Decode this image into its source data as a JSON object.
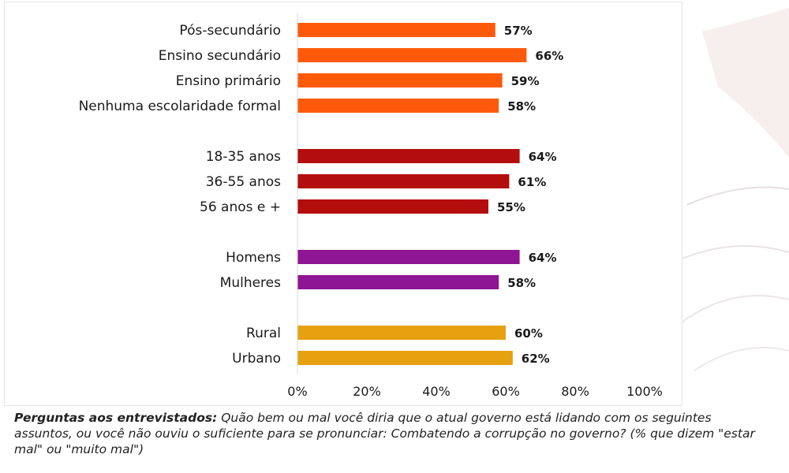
{
  "chart_data": {
    "type": "bar",
    "orientation": "horizontal",
    "xlim": [
      0,
      100
    ],
    "x_ticks": [
      "0%",
      "20%",
      "40%",
      "60%",
      "80%",
      "100%"
    ],
    "grid": false,
    "groups": [
      {
        "color": "#ff5a0a",
        "items": [
          {
            "label": "Pós-secundário",
            "value": 57,
            "value_label": "57%"
          },
          {
            "label": "Ensino secundário",
            "value": 66,
            "value_label": "66%"
          },
          {
            "label": "Ensino primário",
            "value": 59,
            "value_label": "59%"
          },
          {
            "label": "Nenhuma escolaridade formal",
            "value": 58,
            "value_label": "58%"
          }
        ]
      },
      {
        "color": "#b30d0d",
        "items": [
          {
            "label": "18-35 anos",
            "value": 64,
            "value_label": "64%"
          },
          {
            "label": "36-55 anos",
            "value": 61,
            "value_label": "61%"
          },
          {
            "label": "56 anos e +",
            "value": 55,
            "value_label": "55%"
          }
        ]
      },
      {
        "color": "#8e1593",
        "items": [
          {
            "label": "Homens",
            "value": 64,
            "value_label": "64%"
          },
          {
            "label": "Mulheres",
            "value": 58,
            "value_label": "58%"
          }
        ]
      },
      {
        "color": "#e6a010",
        "items": [
          {
            "label": "Rural",
            "value": 60,
            "value_label": "60%"
          },
          {
            "label": "Urbano",
            "value": 62,
            "value_label": "62%"
          }
        ]
      }
    ]
  },
  "footnote": {
    "bold": "Perguntas aos entrevistados:",
    "text": " Quão bem ou mal você diria que o atual governo está lidando com os seguintes assuntos, ou você não ouviu o suficiente para se pronunciar: Combatendo a corrupção no governo? (% que dizem \"estar mal\" ou \"muito mal\")"
  }
}
